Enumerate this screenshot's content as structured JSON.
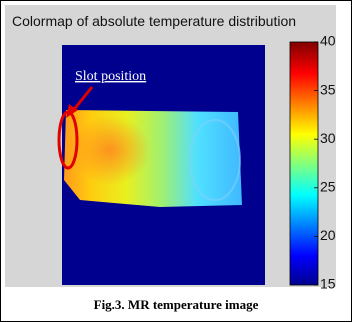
{
  "chart_data": {
    "type": "heatmap",
    "title": "Colormap of absolute temperature distribution",
    "annotation": "Slot position",
    "caption": "Fig.3. MR temperature image",
    "colorbar": {
      "lim": [
        15,
        40
      ],
      "ticks": [
        15,
        20,
        25,
        30,
        35,
        40
      ]
    }
  }
}
